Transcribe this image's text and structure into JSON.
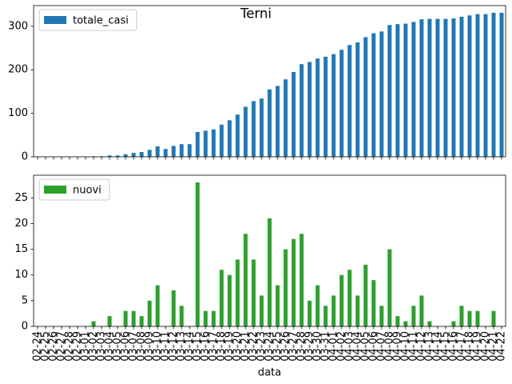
{
  "chart_data": {
    "type": "bar",
    "title": "Terni",
    "x_label": "data",
    "subplots": true,
    "categories": [
      "02-24",
      "02-25",
      "02-26",
      "02-27",
      "02-28",
      "02-29",
      "03-01",
      "03-02",
      "03-03",
      "03-04",
      "03-05",
      "03-06",
      "03-07",
      "03-08",
      "03-09",
      "03-10",
      "03-11",
      "03-12",
      "03-13",
      "03-14",
      "03-15",
      "03-16",
      "03-17",
      "03-18",
      "03-19",
      "03-20",
      "03-21",
      "03-22",
      "03-23",
      "03-24",
      "03-25",
      "03-26",
      "03-27",
      "03-28",
      "03-29",
      "03-30",
      "03-31",
      "04-01",
      "04-02",
      "04-03",
      "04-04",
      "04-05",
      "04-06",
      "04-07",
      "04-08",
      "04-09",
      "04-10",
      "04-11",
      "04-12",
      "04-13",
      "04-14",
      "04-15",
      "04-16",
      "04-17",
      "04-18",
      "04-19",
      "04-20",
      "04-21",
      "04-22"
    ],
    "series": [
      {
        "name": "totale_casi",
        "color": "#1f77b4",
        "legend": "upper left",
        "ylim": [
          0,
          347.55
        ],
        "yticks": [
          0,
          100,
          200,
          300
        ],
        "values": [
          0,
          0,
          0,
          0,
          0,
          0,
          0,
          1,
          1,
          3,
          3,
          6,
          9,
          11,
          16,
          24,
          18,
          25,
          29,
          29,
          57,
          60,
          63,
          74,
          84,
          97,
          115,
          128,
          134,
          155,
          163,
          178,
          195,
          213,
          218,
          226,
          230,
          236,
          246,
          257,
          263,
          275,
          284,
          288,
          303,
          305,
          306,
          310,
          316,
          317,
          317,
          317,
          318,
          322,
          325,
          328,
          328,
          331,
          331
        ]
      },
      {
        "name": "nuovi",
        "color": "#2ca02c",
        "legend": "upper left",
        "ylim": [
          0,
          29.4
        ],
        "yticks": [
          0,
          5,
          10,
          15,
          20,
          25
        ],
        "values": [
          0,
          0,
          0,
          0,
          0,
          0,
          0,
          1,
          0,
          2,
          0,
          3,
          3,
          2,
          5,
          8,
          0,
          7,
          4,
          0,
          28,
          3,
          3,
          11,
          10,
          13,
          18,
          13,
          6,
          21,
          8,
          15,
          17,
          18,
          5,
          8,
          4,
          6,
          10,
          11,
          6,
          12,
          9,
          4,
          15,
          2,
          1,
          4,
          6,
          1,
          0,
          0,
          1,
          4,
          3,
          3,
          0,
          3,
          0
        ]
      }
    ]
  }
}
